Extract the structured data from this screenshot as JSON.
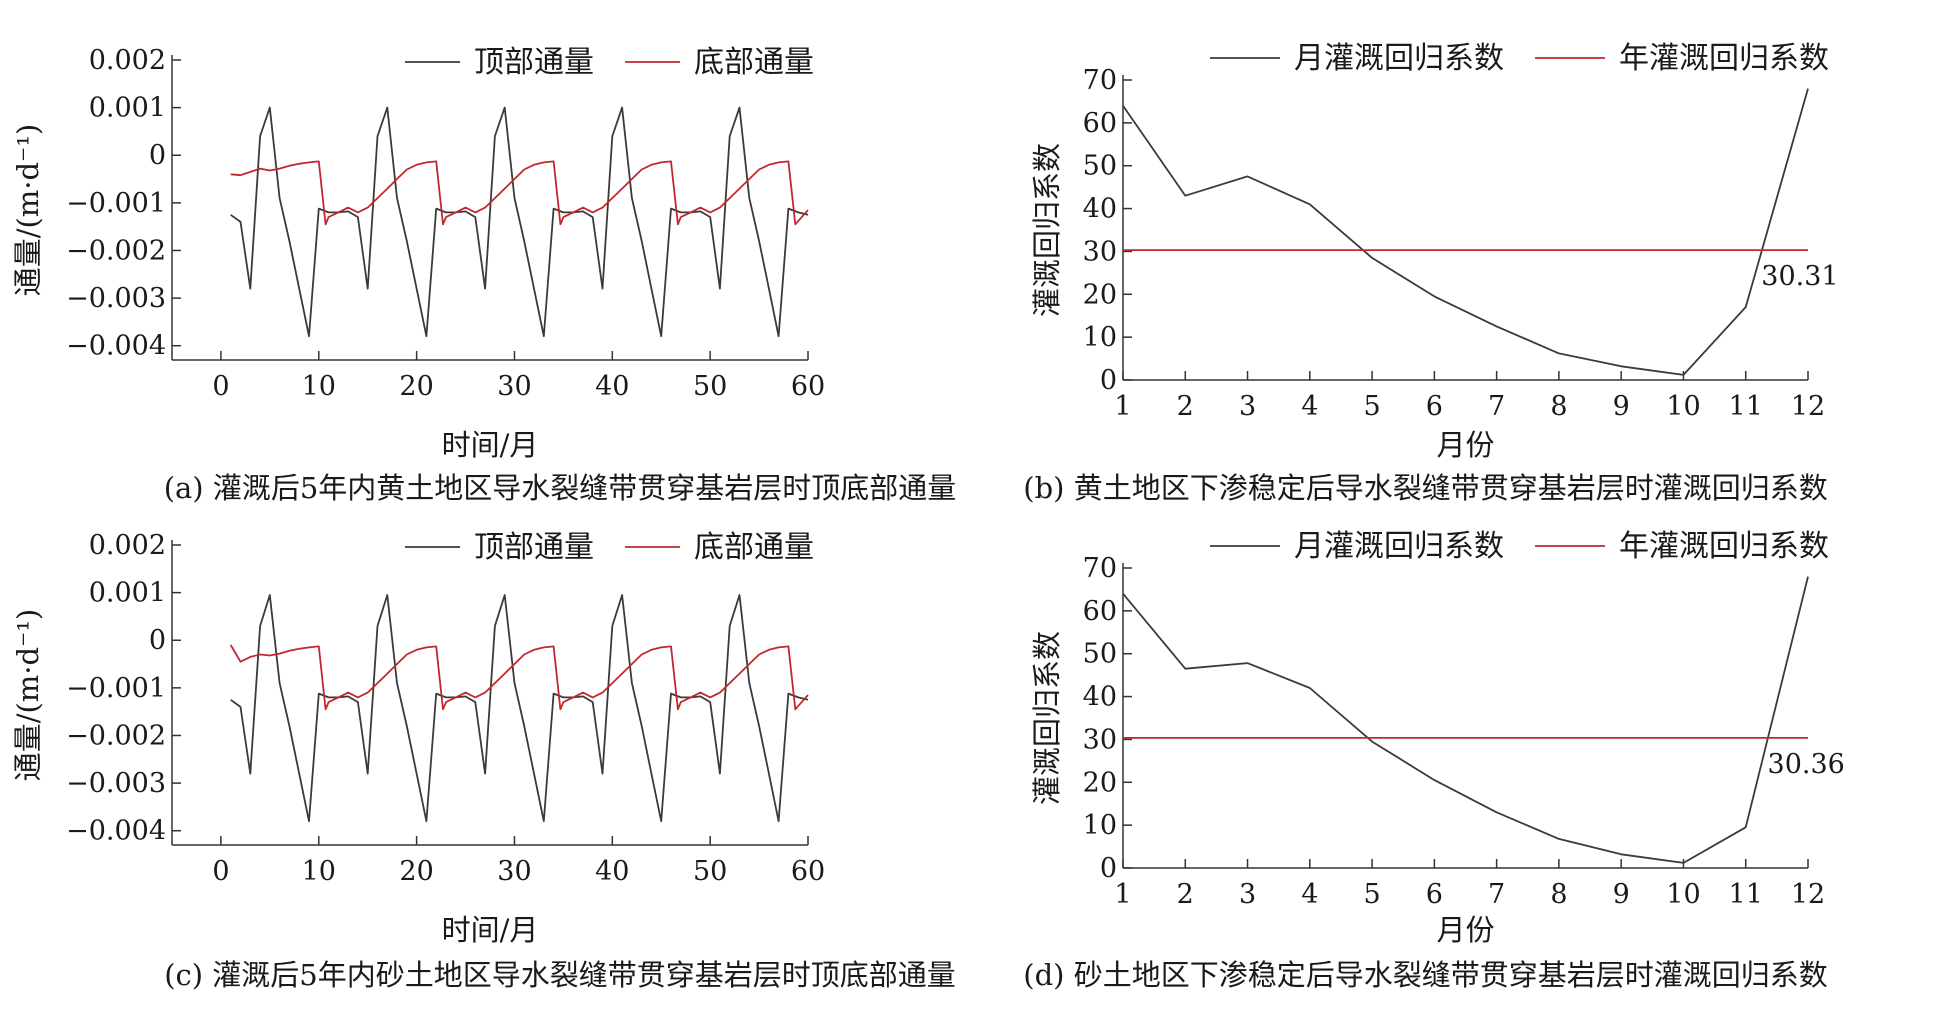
{
  "charts": [
    {
      "id": "a",
      "type": "line",
      "caption": "(a) 灌溉后5年内黄土地区导水裂缝带贯穿基岩层时顶底部通量",
      "ylabel": "通量/(m·d⁻¹)",
      "xlabel": "时间/月",
      "xlim": [
        -5,
        60
      ],
      "ylim": [
        -0.0043,
        0.002
      ],
      "xticks": [
        0,
        10,
        20,
        30,
        40,
        50,
        60
      ],
      "yticks": [
        0.002,
        0.001,
        0,
        -0.001,
        -0.002,
        -0.003,
        -0.004
      ],
      "ytick_labels": [
        "0.002",
        "0.001",
        "0",
        "−0.001",
        "−0.002",
        "−0.003",
        "−0.004"
      ],
      "legend": [
        "顶部通量",
        "底部通量"
      ],
      "series": [
        {
          "name": "顶部通量",
          "color": "#3a3a3a",
          "x": [
            1,
            2,
            3,
            4,
            5,
            6,
            7,
            8,
            9,
            10,
            11,
            12,
            13,
            14,
            15,
            16,
            17,
            18,
            19,
            20,
            21,
            22,
            23,
            24,
            25,
            26,
            27,
            28,
            29,
            30,
            31,
            32,
            33,
            34,
            35,
            36,
            37,
            38,
            39,
            40,
            41,
            42,
            43,
            44,
            45,
            46,
            47,
            48,
            49,
            50,
            51,
            52,
            53,
            54,
            55,
            56,
            57,
            58,
            59,
            60
          ],
          "y": [
            -0.00125,
            -0.0014,
            -0.0028,
            0.0004,
            0.001,
            -0.0009,
            -0.0018,
            -0.0028,
            -0.0038,
            -0.00112,
            -0.0012,
            -0.0012,
            -0.00118,
            -0.0013,
            -0.0028,
            0.0004,
            0.001,
            -0.0009,
            -0.0018,
            -0.0028,
            -0.0038,
            -0.00112,
            -0.0012,
            -0.0012,
            -0.00118,
            -0.0013,
            -0.0028,
            0.0004,
            0.001,
            -0.0009,
            -0.0018,
            -0.0028,
            -0.0038,
            -0.00112,
            -0.0012,
            -0.0012,
            -0.00118,
            -0.0013,
            -0.0028,
            0.0004,
            0.001,
            -0.0009,
            -0.0018,
            -0.0028,
            -0.0038,
            -0.00112,
            -0.0012,
            -0.0012,
            -0.00118,
            -0.0013,
            -0.0028,
            0.0004,
            0.001,
            -0.0009,
            -0.0018,
            -0.0028,
            -0.0038,
            -0.00112,
            -0.0012,
            -0.00125
          ]
        },
        {
          "name": "底部通量",
          "color": "#c0282d",
          "x": [
            1,
            2,
            3,
            4,
            5,
            6,
            7,
            8,
            9,
            10,
            10.7,
            11,
            12,
            13,
            14,
            15,
            16,
            17,
            18,
            19,
            20,
            21,
            22,
            22.7,
            23,
            24,
            25,
            26,
            27,
            28,
            29,
            30,
            31,
            32,
            33,
            34,
            34.7,
            35,
            36,
            37,
            38,
            39,
            40,
            41,
            42,
            43,
            44,
            45,
            46,
            46.7,
            47,
            48,
            49,
            50,
            51,
            52,
            53,
            54,
            55,
            56,
            57,
            58,
            58.7,
            60
          ],
          "y": [
            -0.0004,
            -0.00042,
            -0.00035,
            -0.00028,
            -0.00032,
            -0.00028,
            -0.00022,
            -0.00018,
            -0.00015,
            -0.00013,
            -0.00145,
            -0.0013,
            -0.0012,
            -0.0011,
            -0.0012,
            -0.0011,
            -0.0009,
            -0.0007,
            -0.0005,
            -0.0003,
            -0.0002,
            -0.00015,
            -0.00013,
            -0.00145,
            -0.0013,
            -0.0012,
            -0.0011,
            -0.0012,
            -0.0011,
            -0.0009,
            -0.0007,
            -0.0005,
            -0.0003,
            -0.0002,
            -0.00015,
            -0.00013,
            -0.00145,
            -0.0013,
            -0.0012,
            -0.0011,
            -0.0012,
            -0.0011,
            -0.0009,
            -0.0007,
            -0.0005,
            -0.0003,
            -0.0002,
            -0.00015,
            -0.00013,
            -0.00145,
            -0.0013,
            -0.0012,
            -0.0011,
            -0.0012,
            -0.0011,
            -0.0009,
            -0.0007,
            -0.0005,
            -0.0003,
            -0.0002,
            -0.00015,
            -0.00013,
            -0.00145,
            -0.00115
          ]
        }
      ]
    },
    {
      "id": "b",
      "type": "line",
      "caption": "(b) 黄土地区下渗稳定后导水裂缝带贯穿基岩层时灌溉回归系数",
      "ylabel": "灌溉回归系数",
      "xlabel": "月份",
      "xlim": [
        1,
        12
      ],
      "ylim": [
        0,
        70
      ],
      "xticks": [
        1,
        2,
        3,
        4,
        5,
        6,
        7,
        8,
        9,
        10,
        11,
        12
      ],
      "yticks": [
        0,
        10,
        20,
        30,
        40,
        50,
        60,
        70
      ],
      "legend": [
        "月灌溉回归系数",
        "年灌溉回归系数"
      ],
      "annotation": "30.31",
      "annotation_at": [
        11.25,
        24
      ],
      "series": [
        {
          "name": "月灌溉回归系数",
          "color": "#3a3a3a",
          "x": [
            1,
            2,
            3,
            4,
            5,
            6,
            7,
            8,
            9,
            10,
            11,
            12
          ],
          "y": [
            64,
            43,
            47.5,
            41,
            28.5,
            19.5,
            12.5,
            6.2,
            3.2,
            1.2,
            17,
            68
          ]
        },
        {
          "name": "年灌溉回归系数",
          "color": "#c0282d",
          "x": [
            1,
            12
          ],
          "y": [
            30.31,
            30.31
          ]
        }
      ]
    },
    {
      "id": "c",
      "type": "line",
      "caption": "(c) 灌溉后5年内砂土地区导水裂缝带贯穿基岩层时顶底部通量",
      "ylabel": "通量/(m·d⁻¹)",
      "xlabel": "时间/月",
      "xlim": [
        -5,
        60
      ],
      "ylim": [
        -0.0043,
        0.002
      ],
      "xticks": [
        0,
        10,
        20,
        30,
        40,
        50,
        60
      ],
      "yticks": [
        0.002,
        0.001,
        0,
        -0.001,
        -0.002,
        -0.003,
        -0.004
      ],
      "ytick_labels": [
        "0.002",
        "0.001",
        "0",
        "−0.001",
        "−0.002",
        "−0.003",
        "−0.004"
      ],
      "legend": [
        "顶部通量",
        "底部通量"
      ],
      "series": [
        {
          "name": "顶部通量",
          "color": "#3a3a3a",
          "x": [
            1,
            2,
            3,
            4,
            5,
            6,
            7,
            8,
            9,
            10,
            11,
            12,
            13,
            14,
            15,
            16,
            17,
            18,
            19,
            20,
            21,
            22,
            23,
            24,
            25,
            26,
            27,
            28,
            29,
            30,
            31,
            32,
            33,
            34,
            35,
            36,
            37,
            38,
            39,
            40,
            41,
            42,
            43,
            44,
            45,
            46,
            47,
            48,
            49,
            50,
            51,
            52,
            53,
            54,
            55,
            56,
            57,
            58,
            59,
            60
          ],
          "y": [
            -0.00125,
            -0.0014,
            -0.0028,
            0.0003,
            0.00095,
            -0.0009,
            -0.0018,
            -0.0028,
            -0.0038,
            -0.00112,
            -0.0012,
            -0.0012,
            -0.00118,
            -0.0013,
            -0.0028,
            0.0003,
            0.00095,
            -0.0009,
            -0.0018,
            -0.0028,
            -0.0038,
            -0.00112,
            -0.0012,
            -0.0012,
            -0.00118,
            -0.0013,
            -0.0028,
            0.0003,
            0.00095,
            -0.0009,
            -0.0018,
            -0.0028,
            -0.0038,
            -0.00112,
            -0.0012,
            -0.0012,
            -0.00118,
            -0.0013,
            -0.0028,
            0.0003,
            0.00095,
            -0.0009,
            -0.0018,
            -0.0028,
            -0.0038,
            -0.00112,
            -0.0012,
            -0.0012,
            -0.00118,
            -0.0013,
            -0.0028,
            0.0003,
            0.00095,
            -0.0009,
            -0.0018,
            -0.0028,
            -0.0038,
            -0.00112,
            -0.0012,
            -0.00125
          ]
        },
        {
          "name": "底部通量",
          "color": "#c0282d",
          "x": [
            1,
            2,
            3,
            4,
            5,
            6,
            7,
            8,
            9,
            10,
            10.7,
            11,
            12,
            13,
            14,
            15,
            16,
            17,
            18,
            19,
            20,
            21,
            22,
            22.7,
            23,
            24,
            25,
            26,
            27,
            28,
            29,
            30,
            31,
            32,
            33,
            34,
            34.7,
            35,
            36,
            37,
            38,
            39,
            40,
            41,
            42,
            43,
            44,
            45,
            46,
            46.7,
            47,
            48,
            49,
            50,
            51,
            52,
            53,
            54,
            55,
            56,
            57,
            58,
            58.7,
            60
          ],
          "y": [
            -0.0001,
            -0.00045,
            -0.00035,
            -0.0003,
            -0.00032,
            -0.00028,
            -0.00022,
            -0.00018,
            -0.00015,
            -0.00013,
            -0.00145,
            -0.0013,
            -0.0012,
            -0.0011,
            -0.0012,
            -0.0011,
            -0.0009,
            -0.0007,
            -0.0005,
            -0.0003,
            -0.0002,
            -0.00015,
            -0.00013,
            -0.00145,
            -0.0013,
            -0.0012,
            -0.0011,
            -0.0012,
            -0.0011,
            -0.0009,
            -0.0007,
            -0.0005,
            -0.0003,
            -0.0002,
            -0.00015,
            -0.00013,
            -0.00145,
            -0.0013,
            -0.0012,
            -0.0011,
            -0.0012,
            -0.0011,
            -0.0009,
            -0.0007,
            -0.0005,
            -0.0003,
            -0.0002,
            -0.00015,
            -0.00013,
            -0.00145,
            -0.0013,
            -0.0012,
            -0.0011,
            -0.0012,
            -0.0011,
            -0.0009,
            -0.0007,
            -0.0005,
            -0.0003,
            -0.0002,
            -0.00015,
            -0.00013,
            -0.00145,
            -0.00115
          ]
        }
      ]
    },
    {
      "id": "d",
      "type": "line",
      "caption": "(d) 砂土地区下渗稳定后导水裂缝带贯穿基岩层时灌溉回归系数",
      "ylabel": "灌溉回归系数",
      "xlabel": "月份",
      "xlim": [
        1,
        12
      ],
      "ylim": [
        0,
        70
      ],
      "xticks": [
        1,
        2,
        3,
        4,
        5,
        6,
        7,
        8,
        9,
        10,
        11,
        12
      ],
      "yticks": [
        0,
        10,
        20,
        30,
        40,
        50,
        60,
        70
      ],
      "legend": [
        "月灌溉回归系数",
        "年灌溉回归系数"
      ],
      "annotation": "30.36",
      "annotation_at": [
        11.35,
        24
      ],
      "series": [
        {
          "name": "月灌溉回归系数",
          "color": "#3a3a3a",
          "x": [
            1,
            2,
            3,
            4,
            5,
            6,
            7,
            8,
            9,
            10,
            11,
            12
          ],
          "y": [
            64,
            46.5,
            47.8,
            42,
            29.5,
            20.5,
            13,
            6.8,
            3.2,
            1.2,
            9.5,
            68
          ]
        },
        {
          "name": "年灌溉回归系数",
          "color": "#c0282d",
          "x": [
            1,
            12
          ],
          "y": [
            30.36,
            30.36
          ]
        }
      ]
    }
  ]
}
